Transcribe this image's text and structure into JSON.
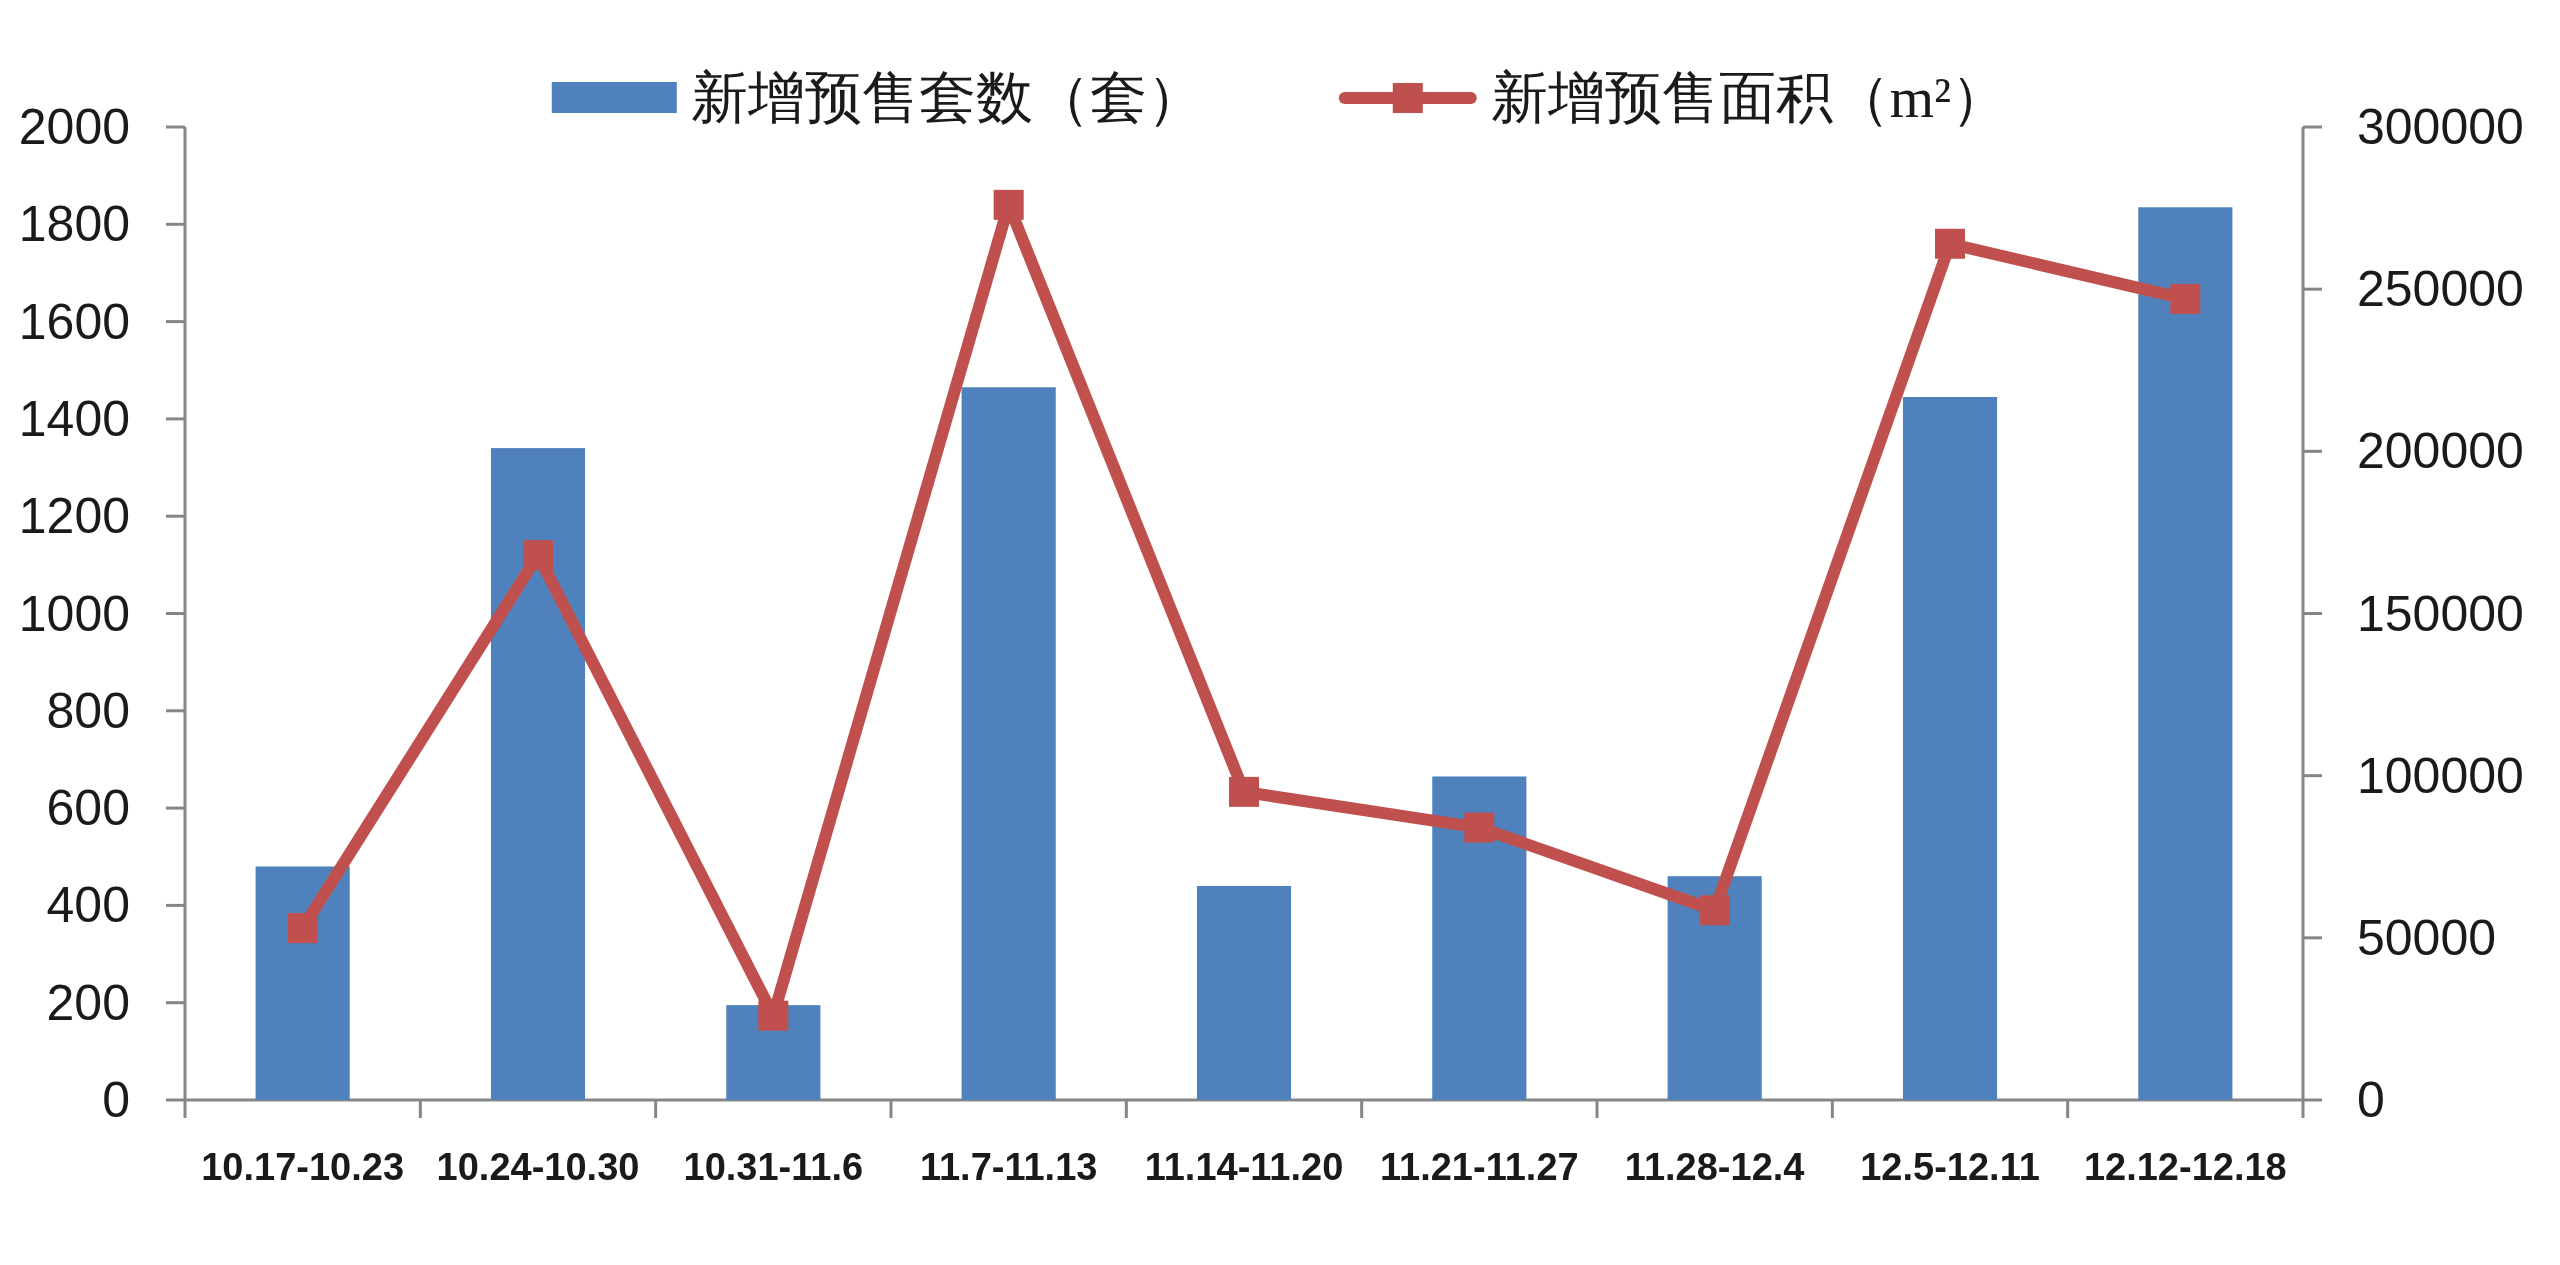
{
  "chart_data": {
    "type": "bar",
    "categories": [
      "10.17-10.23",
      "10.24-10.30",
      "10.31-11.6",
      "11.7-11.13",
      "11.14-11.20",
      "11.21-11.27",
      "11.28-12.4",
      "12.5-12.11",
      "12.12-12.18"
    ],
    "series": [
      {
        "name": "新增预售套数（套）",
        "color": "#4f81bd",
        "values": [
          480,
          1340,
          195,
          1465,
          440,
          665,
          460,
          1445,
          1835
        ]
      },
      {
        "name": "新增预售面积（m²）",
        "type": "line",
        "axis": "y2",
        "color": "#c0504d",
        "marker": "square",
        "values": [
          53000,
          168000,
          26000,
          276000,
          95000,
          84000,
          58500,
          264000,
          247000
        ]
      }
    ],
    "ylim": [
      0,
      2000
    ],
    "yticks": [
      0,
      200,
      400,
      600,
      800,
      1000,
      1200,
      1400,
      1600,
      1800,
      2000
    ],
    "y2lim": [
      0,
      300000
    ],
    "y2ticks": [
      0,
      50000,
      100000,
      150000,
      200000,
      250000,
      300000
    ],
    "legend": "top"
  }
}
